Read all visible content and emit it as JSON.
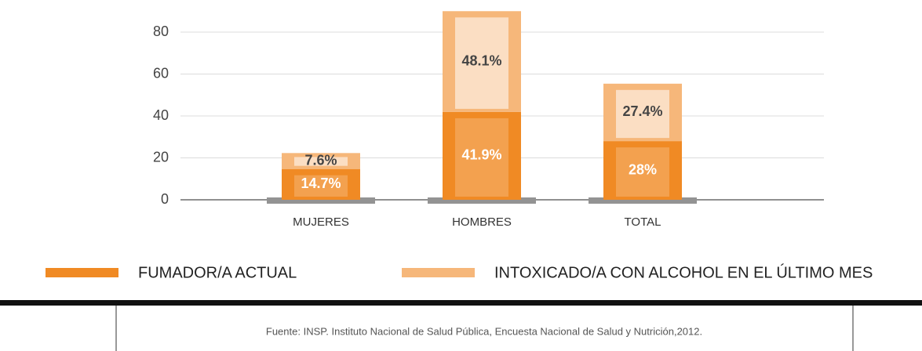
{
  "chart_data": {
    "type": "bar",
    "stacked": true,
    "categories": [
      "MUJERES",
      "HOMBRES",
      "TOTAL"
    ],
    "series": [
      {
        "name": "FUMADOR/A ACTUAL",
        "color": "#f08a24",
        "values": [
          14.7,
          41.9,
          28
        ],
        "value_labels": [
          "14.7%",
          "41.9%",
          "28%"
        ]
      },
      {
        "name": "INTOXICADO/A CON ALCOHOL EN EL ÚLTIMO MES",
        "color": "#f6b77a",
        "values": [
          7.6,
          48.1,
          27.4
        ],
        "value_labels": [
          "7.6%",
          "48.1%",
          "27.4%"
        ]
      }
    ],
    "ylim": [
      0,
      95
    ],
    "yticks": [
      0,
      20,
      40,
      60,
      80
    ],
    "grid": true,
    "source": "Fuente: INSP. Instituto Nacional de Salud Pública, Encuesta Nacional de Salud y Nutrición,2012."
  }
}
